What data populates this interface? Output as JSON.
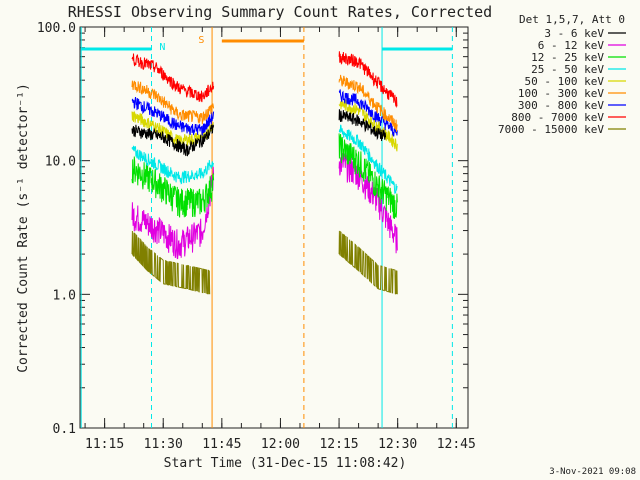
{
  "chart_data": {
    "type": "line",
    "title": "RHESSI Observing Summary Count Rates, Corrected",
    "xlabel": "Start Time (31-Dec-15 11:08:42)",
    "ylabel": "Corrected Count Rate (s⁻¹ detector⁻¹)",
    "y_scale": "log",
    "ylim": [
      0.1,
      100
    ],
    "xlim": [
      "11:08:42",
      "12:48:00"
    ],
    "x_ticks": [
      "11:15",
      "11:30",
      "11:45",
      "12:00",
      "12:15",
      "12:30",
      "12:45"
    ],
    "y_ticks": [
      "0.1",
      "1.0",
      "10.0",
      "100.0"
    ],
    "legend_title": "Det 1,5,7, Att 0",
    "legend_position": "right",
    "gaps": [
      [
        "11:42:30",
        "12:15:00"
      ]
    ],
    "series": [
      {
        "name": "3 - 6 keV",
        "color": "#000000",
        "points": [
          [
            "11:22",
            17
          ],
          [
            "11:30",
            15
          ],
          [
            "11:36",
            12
          ],
          [
            "11:41",
            15
          ],
          [
            "11:43",
            18
          ]
        ],
        "points2": [
          [
            "12:15",
            22
          ],
          [
            "12:20",
            20
          ],
          [
            "12:25",
            16
          ],
          [
            "12:27",
            15
          ]
        ]
      },
      {
        "name": "6 - 12 keV",
        "color": "#e000e0",
        "points": [
          [
            "11:22",
            4
          ],
          [
            "11:28",
            3.2
          ],
          [
            "11:34",
            2.4
          ],
          [
            "11:40",
            3
          ],
          [
            "11:43",
            8
          ]
        ],
        "points2": [
          [
            "12:15",
            10
          ],
          [
            "12:20",
            8
          ],
          [
            "12:25",
            5
          ],
          [
            "12:30",
            2.5
          ]
        ]
      },
      {
        "name": "12 - 25 keV",
        "color": "#00e000",
        "points": [
          [
            "11:22",
            9
          ],
          [
            "11:28",
            7
          ],
          [
            "11:34",
            5
          ],
          [
            "11:40",
            5
          ],
          [
            "11:43",
            7
          ]
        ],
        "points2": [
          [
            "12:15",
            13
          ],
          [
            "12:20",
            10
          ],
          [
            "12:25",
            6.5
          ],
          [
            "12:30",
            4.5
          ]
        ]
      },
      {
        "name": "25 - 50 keV",
        "color": "#00e8e8",
        "points": [
          [
            "11:22",
            12
          ],
          [
            "11:28",
            9.5
          ],
          [
            "11:34",
            7.5
          ],
          [
            "11:40",
            8
          ],
          [
            "11:43",
            10
          ]
        ],
        "points2": [
          [
            "12:15",
            17
          ],
          [
            "12:20",
            14
          ],
          [
            "12:25",
            9
          ],
          [
            "12:30",
            6
          ]
        ]
      },
      {
        "name": "50 - 100 keV",
        "color": "#d8d800",
        "points": [
          [
            "11:22",
            22
          ],
          [
            "11:28",
            18
          ],
          [
            "11:34",
            14
          ],
          [
            "11:40",
            15
          ],
          [
            "11:43",
            19
          ]
        ],
        "points2": [
          [
            "12:15",
            27
          ],
          [
            "12:20",
            24
          ],
          [
            "12:25",
            18
          ],
          [
            "12:30",
            13
          ]
        ]
      },
      {
        "name": "100 - 300 keV",
        "color": "#ff8c00",
        "points": [
          [
            "11:22",
            38
          ],
          [
            "11:28",
            31
          ],
          [
            "11:34",
            22
          ],
          [
            "11:40",
            21
          ],
          [
            "11:43",
            26
          ]
        ],
        "points2": [
          [
            "12:15",
            40
          ],
          [
            "12:20",
            36
          ],
          [
            "12:25",
            25
          ],
          [
            "12:30",
            18
          ]
        ]
      },
      {
        "name": "300 - 800 keV",
        "color": "#0000ff",
        "points": [
          [
            "11:22",
            28
          ],
          [
            "11:28",
            23
          ],
          [
            "11:34",
            18
          ],
          [
            "11:40",
            17
          ],
          [
            "11:43",
            22
          ]
        ],
        "points2": [
          [
            "12:15",
            31
          ],
          [
            "12:20",
            28
          ],
          [
            "12:25",
            21
          ],
          [
            "12:30",
            16
          ]
        ]
      },
      {
        "name": "800 - 7000 keV",
        "color": "#ff0000",
        "points": [
          [
            "11:22",
            58
          ],
          [
            "11:28",
            50
          ],
          [
            "11:34",
            35
          ],
          [
            "11:40",
            30
          ],
          [
            "11:43",
            37
          ]
        ],
        "points2": [
          [
            "12:15",
            60
          ],
          [
            "12:20",
            55
          ],
          [
            "12:25",
            38
          ],
          [
            "12:30",
            27
          ]
        ]
      },
      {
        "name": "7000 - 15000 keV",
        "color": "#808000",
        "points": [
          [
            "11:22",
            2.0
          ],
          [
            "11:26",
            1.5
          ],
          [
            "11:30",
            1.2
          ],
          [
            "11:36",
            1.1
          ],
          [
            "11:42",
            1.0
          ]
        ],
        "points2": [
          [
            "12:15",
            2.0
          ],
          [
            "12:20",
            1.5
          ],
          [
            "12:25",
            1.1
          ],
          [
            "12:30",
            1.0
          ]
        ]
      }
    ],
    "flags": [
      {
        "label": "N",
        "color": "#00e8e8"
      },
      {
        "label": "S",
        "color": "#ff8c00"
      }
    ],
    "timestamp": "3-Nov-2021 09:08"
  }
}
